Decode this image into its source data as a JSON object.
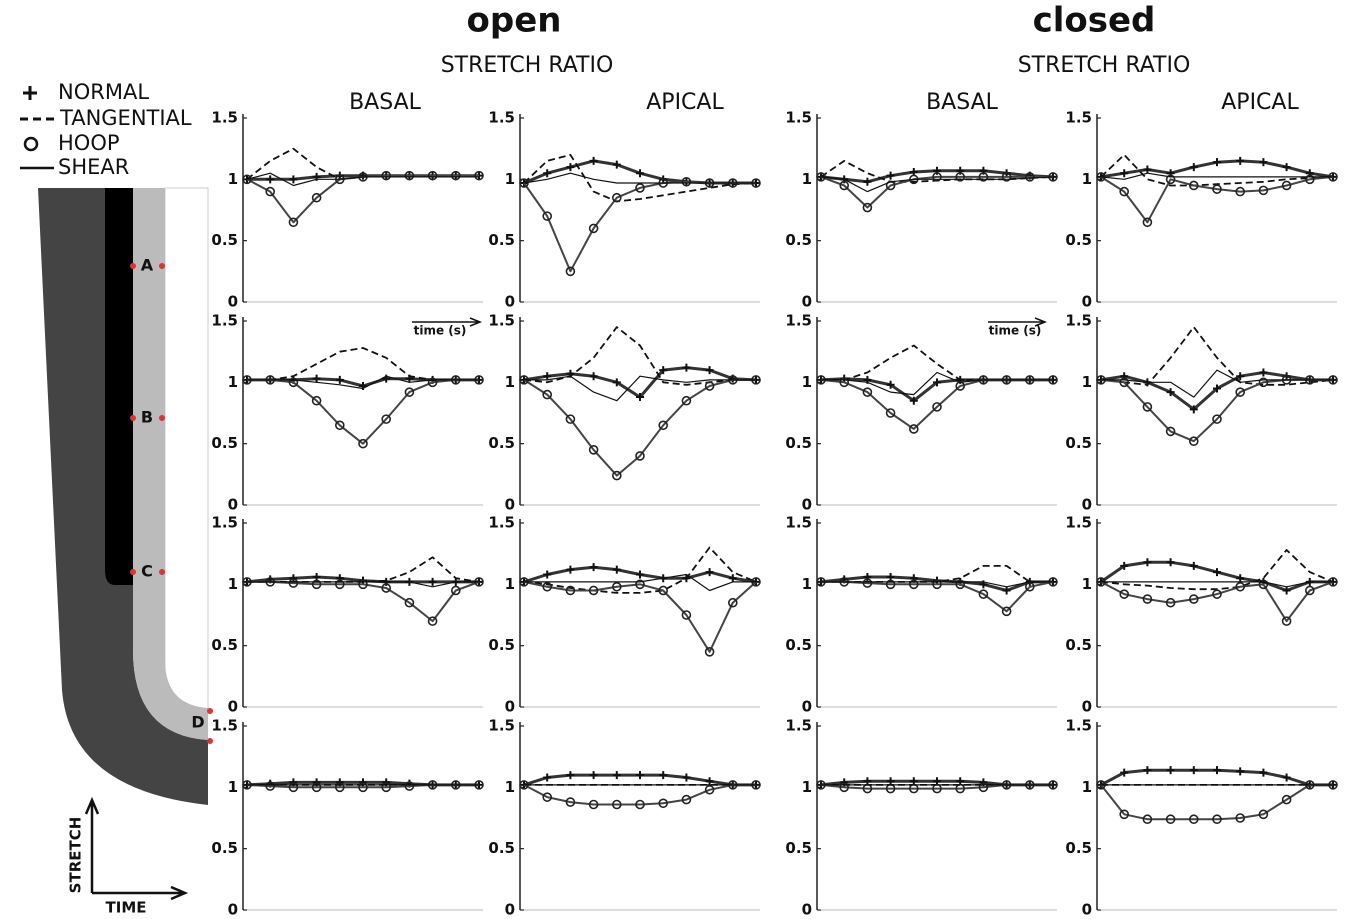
{
  "figure": {
    "titles": [
      "open",
      "closed"
    ],
    "subtitles": [
      "STRETCH RATIO",
      "STRETCH RATIO"
    ],
    "columns": [
      "BASAL",
      "APICAL",
      "BASAL",
      "APICAL"
    ],
    "legend": [
      "NORMAL",
      "TANGENTIAL",
      "HOOP",
      "SHEAR"
    ],
    "time_labels": [
      "time (s)",
      "time (s)"
    ]
  },
  "schematic": {
    "points": [
      "A",
      "B",
      "C",
      "D"
    ],
    "axis_y": "STRETCH",
    "axis_x": "TIME"
  },
  "chart_data": [
    {
      "type": "line",
      "ylim": [
        0,
        1.5
      ],
      "yticks": [
        0,
        0.5,
        1,
        1.5
      ],
      "series": [
        {
          "values": [
            1,
            1,
            1,
            1.02,
            1.03,
            1.03,
            1.03,
            1.03,
            1.03,
            1.03,
            1.03
          ]
        },
        {
          "values": [
            1,
            1.15,
            1.25,
            1.1,
            1,
            1.02,
            1.03,
            1.03,
            1.03,
            1.03,
            1.03
          ]
        },
        {
          "values": [
            1,
            0.9,
            0.65,
            0.85,
            1,
            1.02,
            1.03,
            1.03,
            1.03,
            1.03,
            1.03
          ]
        },
        {
          "values": [
            1,
            1.05,
            0.95,
            1,
            1,
            1.02,
            1.02,
            1.02,
            1.02,
            1.02,
            1.02
          ]
        }
      ]
    },
    {
      "type": "line",
      "ylim": [
        0,
        1.5
      ],
      "yticks": [
        0,
        0.5,
        1,
        1.5
      ],
      "series": [
        {
          "values": [
            0.97,
            1.05,
            1.1,
            1.15,
            1.12,
            1.05,
            1,
            0.98,
            0.97,
            0.97,
            0.97
          ]
        },
        {
          "values": [
            0.97,
            1.15,
            1.2,
            0.9,
            0.82,
            0.84,
            0.87,
            0.9,
            0.93,
            0.96,
            0.97
          ]
        },
        {
          "values": [
            0.97,
            0.7,
            0.25,
            0.6,
            0.85,
            0.93,
            0.97,
            0.98,
            0.97,
            0.97,
            0.97
          ]
        },
        {
          "values": [
            0.97,
            1,
            1.05,
            1,
            0.97,
            0.97,
            0.97,
            0.97,
            0.97,
            0.97,
            0.97
          ]
        }
      ]
    },
    {
      "type": "line",
      "ylim": [
        0,
        1.5
      ],
      "yticks": [
        0,
        0.5,
        1,
        1.5
      ],
      "series": [
        {
          "values": [
            1.02,
            1,
            0.98,
            1.03,
            1.06,
            1.07,
            1.07,
            1.07,
            1.05,
            1.03,
            1.02
          ]
        },
        {
          "values": [
            1.02,
            1.15,
            1.05,
            0.98,
            0.98,
            0.99,
            1,
            1,
            1,
            1.01,
            1.02
          ]
        },
        {
          "values": [
            1.02,
            0.95,
            0.77,
            0.95,
            1,
            1.02,
            1.02,
            1.02,
            1.02,
            1.02,
            1.02
          ]
        },
        {
          "values": [
            1.02,
            1,
            0.9,
            0.98,
            1,
            1,
            1,
            1,
            1,
            1.01,
            1.02
          ]
        }
      ]
    },
    {
      "type": "line",
      "ylim": [
        0,
        1.5
      ],
      "yticks": [
        0,
        0.5,
        1,
        1.5
      ],
      "series": [
        {
          "values": [
            1.02,
            1.05,
            1.08,
            1.05,
            1.1,
            1.14,
            1.15,
            1.14,
            1.1,
            1.05,
            1.02
          ]
        },
        {
          "values": [
            1.02,
            1.2,
            1,
            0.95,
            0.95,
            0.96,
            0.97,
            0.98,
            1,
            1.01,
            1.02
          ]
        },
        {
          "values": [
            1.02,
            0.9,
            0.65,
            1,
            0.95,
            0.92,
            0.9,
            0.91,
            0.95,
            1,
            1.02
          ]
        },
        {
          "values": [
            1.02,
            1,
            1.05,
            1.02,
            1.02,
            1.02,
            1.02,
            1.02,
            1.02,
            1.02,
            1.02
          ]
        }
      ]
    },
    {
      "type": "line",
      "ylim": [
        0,
        1.5
      ],
      "yticks": [
        0,
        0.5,
        1,
        1.5
      ],
      "series": [
        {
          "values": [
            1.02,
            1.02,
            1.02,
            1.03,
            1.02,
            0.97,
            1.03,
            1.03,
            1.02,
            1.02,
            1.02
          ]
        },
        {
          "values": [
            1.02,
            1.02,
            1.05,
            1.15,
            1.25,
            1.28,
            1.2,
            1.05,
            1.02,
            1.02,
            1.02
          ]
        },
        {
          "values": [
            1.02,
            1.02,
            1,
            0.85,
            0.65,
            0.5,
            0.7,
            0.92,
            1,
            1.02,
            1.02
          ]
        },
        {
          "values": [
            1.02,
            1.02,
            1.02,
            1,
            0.98,
            0.95,
            1.05,
            1,
            1.02,
            1.02,
            1.02
          ]
        }
      ]
    },
    {
      "type": "line",
      "ylim": [
        0,
        1.5
      ],
      "yticks": [
        0,
        0.5,
        1,
        1.5
      ],
      "series": [
        {
          "values": [
            1.02,
            1.05,
            1.07,
            1.05,
            1,
            0.88,
            1.1,
            1.12,
            1.1,
            1.03,
            1.02
          ]
        },
        {
          "values": [
            1.02,
            1,
            1.05,
            1.2,
            1.45,
            1.3,
            1,
            0.98,
            1,
            1.02,
            1.02
          ]
        },
        {
          "values": [
            1.02,
            0.9,
            0.7,
            0.45,
            0.24,
            0.4,
            0.65,
            0.85,
            0.97,
            1.02,
            1.02
          ]
        },
        {
          "values": [
            1.02,
            1.02,
            1.05,
            0.92,
            0.85,
            1.05,
            1.02,
            1,
            1.02,
            1.02,
            1.02
          ]
        }
      ]
    },
    {
      "type": "line",
      "ylim": [
        0,
        1.5
      ],
      "yticks": [
        0,
        0.5,
        1,
        1.5
      ],
      "series": [
        {
          "values": [
            1.02,
            1.03,
            1.02,
            0.98,
            0.85,
            1,
            1.02,
            1.02,
            1.02,
            1.02,
            1.02
          ]
        },
        {
          "values": [
            1.02,
            1.02,
            1.08,
            1.2,
            1.3,
            1.15,
            1.02,
            1.02,
            1.02,
            1.02,
            1.02
          ]
        },
        {
          "values": [
            1.02,
            1,
            0.92,
            0.75,
            0.62,
            0.8,
            0.97,
            1.02,
            1.02,
            1.02,
            1.02
          ]
        },
        {
          "values": [
            1.02,
            1.02,
            1,
            0.92,
            0.9,
            1.08,
            1,
            1.02,
            1.02,
            1.02,
            1.02
          ]
        }
      ]
    },
    {
      "type": "line",
      "ylim": [
        0,
        1.5
      ],
      "yticks": [
        0,
        0.5,
        1,
        1.5
      ],
      "series": [
        {
          "values": [
            1.02,
            1.05,
            1,
            0.92,
            0.78,
            0.95,
            1.05,
            1.08,
            1.05,
            1.02,
            1.02
          ]
        },
        {
          "values": [
            1.02,
            1,
            0.98,
            1.2,
            1.45,
            1.2,
            1,
            0.98,
            0.98,
            1,
            1.02
          ]
        },
        {
          "values": [
            1.02,
            1,
            0.8,
            0.6,
            0.52,
            0.7,
            0.92,
            1,
            1.02,
            1.02,
            1.02
          ]
        },
        {
          "values": [
            1.02,
            1.02,
            1,
            1,
            0.88,
            1.1,
            1,
            1.02,
            1.02,
            1.02,
            1.02
          ]
        }
      ]
    },
    {
      "type": "line",
      "ylim": [
        0,
        1.5
      ],
      "yticks": [
        0,
        0.5,
        1,
        1.5
      ],
      "series": [
        {
          "values": [
            1.02,
            1.04,
            1.05,
            1.06,
            1.05,
            1.03,
            1.02,
            1.02,
            1.02,
            1.02,
            1.02
          ]
        },
        {
          "values": [
            1.02,
            1.02,
            1.02,
            1.02,
            1.02,
            1.02,
            1.03,
            1.1,
            1.22,
            1.05,
            1.02
          ]
        },
        {
          "values": [
            1.02,
            1.02,
            1.01,
            1,
            1,
            1,
            0.97,
            0.85,
            0.7,
            0.95,
            1.02
          ]
        },
        {
          "values": [
            1.02,
            1.02,
            1.02,
            1.02,
            1.02,
            1.02,
            1.02,
            1.02,
            0.98,
            1.02,
            1.02
          ]
        }
      ]
    },
    {
      "type": "line",
      "ylim": [
        0,
        1.5
      ],
      "yticks": [
        0,
        0.5,
        1,
        1.5
      ],
      "series": [
        {
          "values": [
            1.02,
            1.08,
            1.12,
            1.14,
            1.12,
            1.08,
            1.05,
            1.05,
            1.1,
            1.05,
            1.02
          ]
        },
        {
          "values": [
            1.02,
            1,
            0.97,
            0.95,
            0.93,
            0.93,
            0.95,
            1.05,
            1.3,
            1.1,
            1.02
          ]
        },
        {
          "values": [
            1.02,
            0.98,
            0.95,
            0.95,
            0.98,
            1,
            0.95,
            0.75,
            0.45,
            0.85,
            1.02
          ]
        },
        {
          "values": [
            1.02,
            1.02,
            1.02,
            1.02,
            1.02,
            1.02,
            1.05,
            1.08,
            0.95,
            1.02,
            1.02
          ]
        }
      ]
    },
    {
      "type": "line",
      "ylim": [
        0,
        1.5
      ],
      "yticks": [
        0,
        0.5,
        1,
        1.5
      ],
      "series": [
        {
          "values": [
            1.02,
            1.04,
            1.06,
            1.06,
            1.05,
            1.03,
            1.02,
            1,
            0.95,
            1.02,
            1.02
          ]
        },
        {
          "values": [
            1.02,
            1.02,
            1.02,
            1.02,
            1.02,
            1.02,
            1.05,
            1.15,
            1.15,
            1.02,
            1.02
          ]
        },
        {
          "values": [
            1.02,
            1.02,
            1.01,
            1,
            1,
            1,
            1,
            0.92,
            0.78,
            0.98,
            1.02
          ]
        },
        {
          "values": [
            1.02,
            1.02,
            1.02,
            1.02,
            1.02,
            1.02,
            1.02,
            1.02,
            0.98,
            1.02,
            1.02
          ]
        }
      ]
    },
    {
      "type": "line",
      "ylim": [
        0,
        1.5
      ],
      "yticks": [
        0,
        0.5,
        1,
        1.5
      ],
      "series": [
        {
          "values": [
            1.02,
            1.15,
            1.18,
            1.18,
            1.15,
            1.1,
            1.05,
            1.02,
            0.95,
            1.02,
            1.02
          ]
        },
        {
          "values": [
            1.02,
            1,
            0.99,
            0.97,
            0.96,
            0.96,
            0.98,
            1.05,
            1.28,
            1.1,
            1.02
          ]
        },
        {
          "values": [
            1.02,
            0.92,
            0.88,
            0.85,
            0.88,
            0.92,
            0.98,
            1,
            0.7,
            0.95,
            1.02
          ]
        },
        {
          "values": [
            1.02,
            1.02,
            1.02,
            1.02,
            1.02,
            1.02,
            1.02,
            1.02,
            0.98,
            1.02,
            1.02
          ]
        }
      ]
    },
    {
      "type": "line",
      "ylim": [
        0,
        1.5
      ],
      "yticks": [
        0,
        0.5,
        1,
        1.5
      ],
      "series": [
        {
          "values": [
            1.02,
            1.03,
            1.04,
            1.04,
            1.04,
            1.04,
            1.04,
            1.03,
            1.02,
            1.02,
            1.02
          ]
        },
        {
          "values": [
            1.02,
            1.02,
            1.02,
            1.02,
            1.02,
            1.02,
            1.02,
            1.02,
            1.02,
            1.02,
            1.02
          ]
        },
        {
          "values": [
            1.02,
            1.01,
            1,
            1,
            1,
            1,
            1,
            1.01,
            1.02,
            1.02,
            1.02
          ]
        },
        {
          "values": [
            1.02,
            1.02,
            1.02,
            1.02,
            1.02,
            1.02,
            1.02,
            1.02,
            1.02,
            1.02,
            1.02
          ]
        }
      ]
    },
    {
      "type": "line",
      "ylim": [
        0,
        1.5
      ],
      "yticks": [
        0,
        0.5,
        1,
        1.5
      ],
      "series": [
        {
          "values": [
            1.02,
            1.08,
            1.1,
            1.1,
            1.1,
            1.1,
            1.1,
            1.08,
            1.05,
            1.02,
            1.02
          ]
        },
        {
          "values": [
            1.02,
            1.02,
            1.02,
            1.02,
            1.02,
            1.02,
            1.02,
            1.02,
            1.02,
            1.02,
            1.02
          ]
        },
        {
          "values": [
            1.02,
            0.92,
            0.88,
            0.86,
            0.86,
            0.86,
            0.87,
            0.9,
            0.98,
            1.02,
            1.02
          ]
        },
        {
          "values": [
            1.02,
            1.02,
            1.02,
            1.02,
            1.02,
            1.02,
            1.02,
            1.02,
            1.02,
            1.02,
            1.02
          ]
        }
      ]
    },
    {
      "type": "line",
      "ylim": [
        0,
        1.5
      ],
      "yticks": [
        0,
        0.5,
        1,
        1.5
      ],
      "series": [
        {
          "values": [
            1.02,
            1.04,
            1.05,
            1.05,
            1.05,
            1.05,
            1.05,
            1.04,
            1.02,
            1.02,
            1.02
          ]
        },
        {
          "values": [
            1.02,
            1.02,
            1.02,
            1.02,
            1.02,
            1.02,
            1.02,
            1.02,
            1.02,
            1.02,
            1.02
          ]
        },
        {
          "values": [
            1.02,
            1,
            0.99,
            0.99,
            0.99,
            0.99,
            0.99,
            1,
            1.02,
            1.02,
            1.02
          ]
        },
        {
          "values": [
            1.02,
            1.02,
            1.02,
            1.02,
            1.02,
            1.02,
            1.02,
            1.02,
            1.02,
            1.02,
            1.02
          ]
        }
      ]
    },
    {
      "type": "line",
      "ylim": [
        0,
        1.5
      ],
      "yticks": [
        0,
        0.5,
        1,
        1.5
      ],
      "series": [
        {
          "values": [
            1.02,
            1.12,
            1.14,
            1.14,
            1.14,
            1.14,
            1.13,
            1.12,
            1.08,
            1.02,
            1.02
          ]
        },
        {
          "values": [
            1.02,
            1.02,
            1.02,
            1.02,
            1.02,
            1.02,
            1.02,
            1.02,
            1.02,
            1.02,
            1.02
          ]
        },
        {
          "values": [
            1.02,
            0.78,
            0.74,
            0.74,
            0.74,
            0.74,
            0.75,
            0.78,
            0.9,
            1.02,
            1.02
          ]
        },
        {
          "values": [
            1.02,
            1.02,
            1.02,
            1.02,
            1.02,
            1.02,
            1.02,
            1.02,
            1.02,
            1.02,
            1.02
          ]
        }
      ]
    }
  ]
}
